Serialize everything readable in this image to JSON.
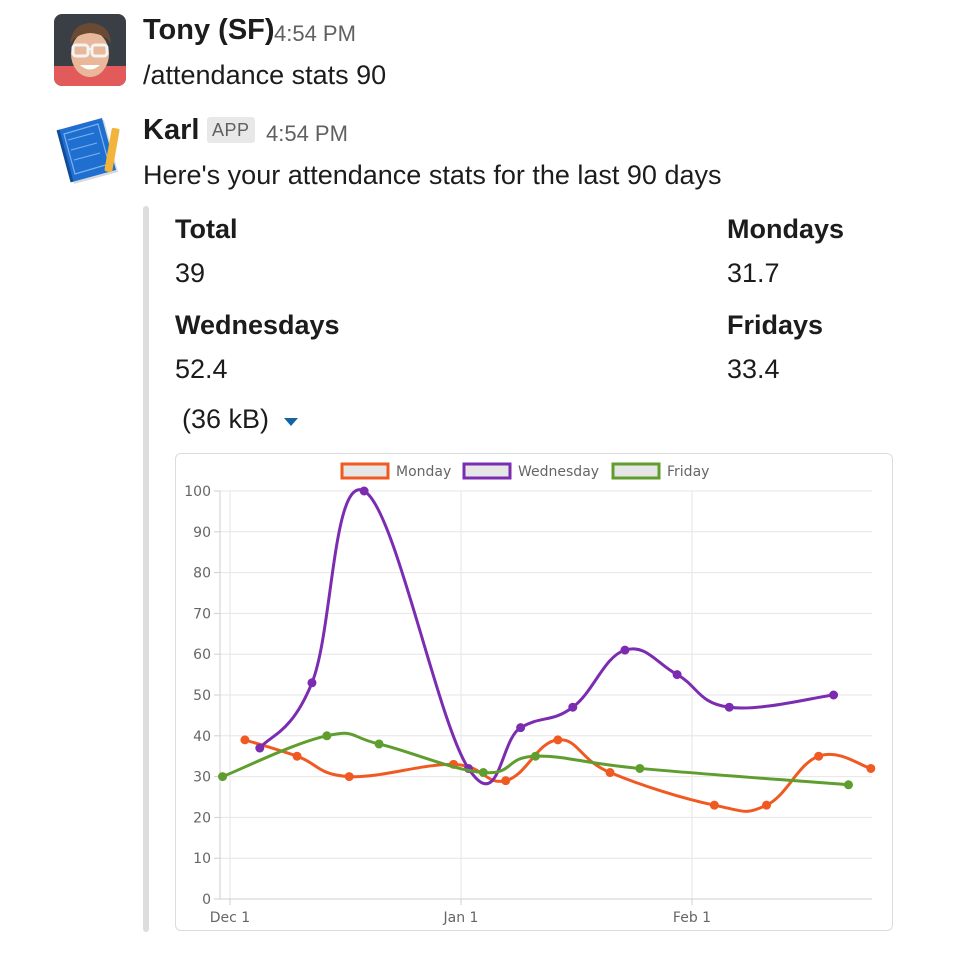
{
  "messages": [
    {
      "author": "Tony (SF)",
      "time": "4:54 PM",
      "text": "/attendance stats 90"
    },
    {
      "author": "Karl",
      "badge": "APP",
      "time": "4:54 PM",
      "text": "Here's your attendance stats for the last 90 days"
    }
  ],
  "attachment": {
    "fields": [
      {
        "title": "Total",
        "value": "39"
      },
      {
        "title": "Mondays",
        "value": "31.7"
      },
      {
        "title": "Wednesdays",
        "value": "52.4"
      },
      {
        "title": "Fridays",
        "value": "33.4"
      }
    ],
    "file_size": "(36 kB)"
  },
  "icons": {
    "avatar_tony": "person-avatar",
    "avatar_karl": "blueprint-book-icon",
    "caret": "caret-down-icon"
  },
  "chart_data": {
    "type": "line",
    "ylim": [
      0,
      100
    ],
    "y_ticks": [
      0,
      10,
      20,
      30,
      40,
      50,
      60,
      70,
      80,
      90,
      100
    ],
    "x_ticks": [
      {
        "label": "Dec 1",
        "date": "2017-12-01"
      },
      {
        "label": "Jan 1",
        "date": "2018-01-01"
      },
      {
        "label": "Feb 1",
        "date": "2018-02-01"
      }
    ],
    "grid": true,
    "legend_position": "top",
    "series": [
      {
        "name": "Monday",
        "color": "#f05a22",
        "points": [
          {
            "x": "2017-12-03",
            "y": 39
          },
          {
            "x": "2017-12-10",
            "y": 35
          },
          {
            "x": "2017-12-17",
            "y": 30
          },
          {
            "x": "2017-12-31",
            "y": 33
          },
          {
            "x": "2018-01-07",
            "y": 29
          },
          {
            "x": "2018-01-14",
            "y": 39
          },
          {
            "x": "2018-01-21",
            "y": 31
          },
          {
            "x": "2018-02-04",
            "y": 23
          },
          {
            "x": "2018-02-11",
            "y": 23
          },
          {
            "x": "2018-02-18",
            "y": 35
          },
          {
            "x": "2018-02-25",
            "y": 32
          }
        ]
      },
      {
        "name": "Wednesday",
        "color": "#7b2cb1",
        "points": [
          {
            "x": "2017-12-05",
            "y": 37
          },
          {
            "x": "2017-12-12",
            "y": 53
          },
          {
            "x": "2017-12-19",
            "y": 100
          },
          {
            "x": "2018-01-02",
            "y": 32
          },
          {
            "x": "2018-01-09",
            "y": 42
          },
          {
            "x": "2018-01-16",
            "y": 47
          },
          {
            "x": "2018-01-23",
            "y": 61
          },
          {
            "x": "2018-01-30",
            "y": 55
          },
          {
            "x": "2018-02-06",
            "y": 47
          },
          {
            "x": "2018-02-20",
            "y": 50
          }
        ]
      },
      {
        "name": "Friday",
        "color": "#5f9e2e",
        "points": [
          {
            "x": "2017-11-30",
            "y": 30
          },
          {
            "x": "2017-12-14",
            "y": 40
          },
          {
            "x": "2017-12-21",
            "y": 38
          },
          {
            "x": "2018-01-04",
            "y": 31
          },
          {
            "x": "2018-01-11",
            "y": 35
          },
          {
            "x": "2018-01-25",
            "y": 32
          },
          {
            "x": "2018-02-22",
            "y": 28
          }
        ]
      }
    ]
  }
}
